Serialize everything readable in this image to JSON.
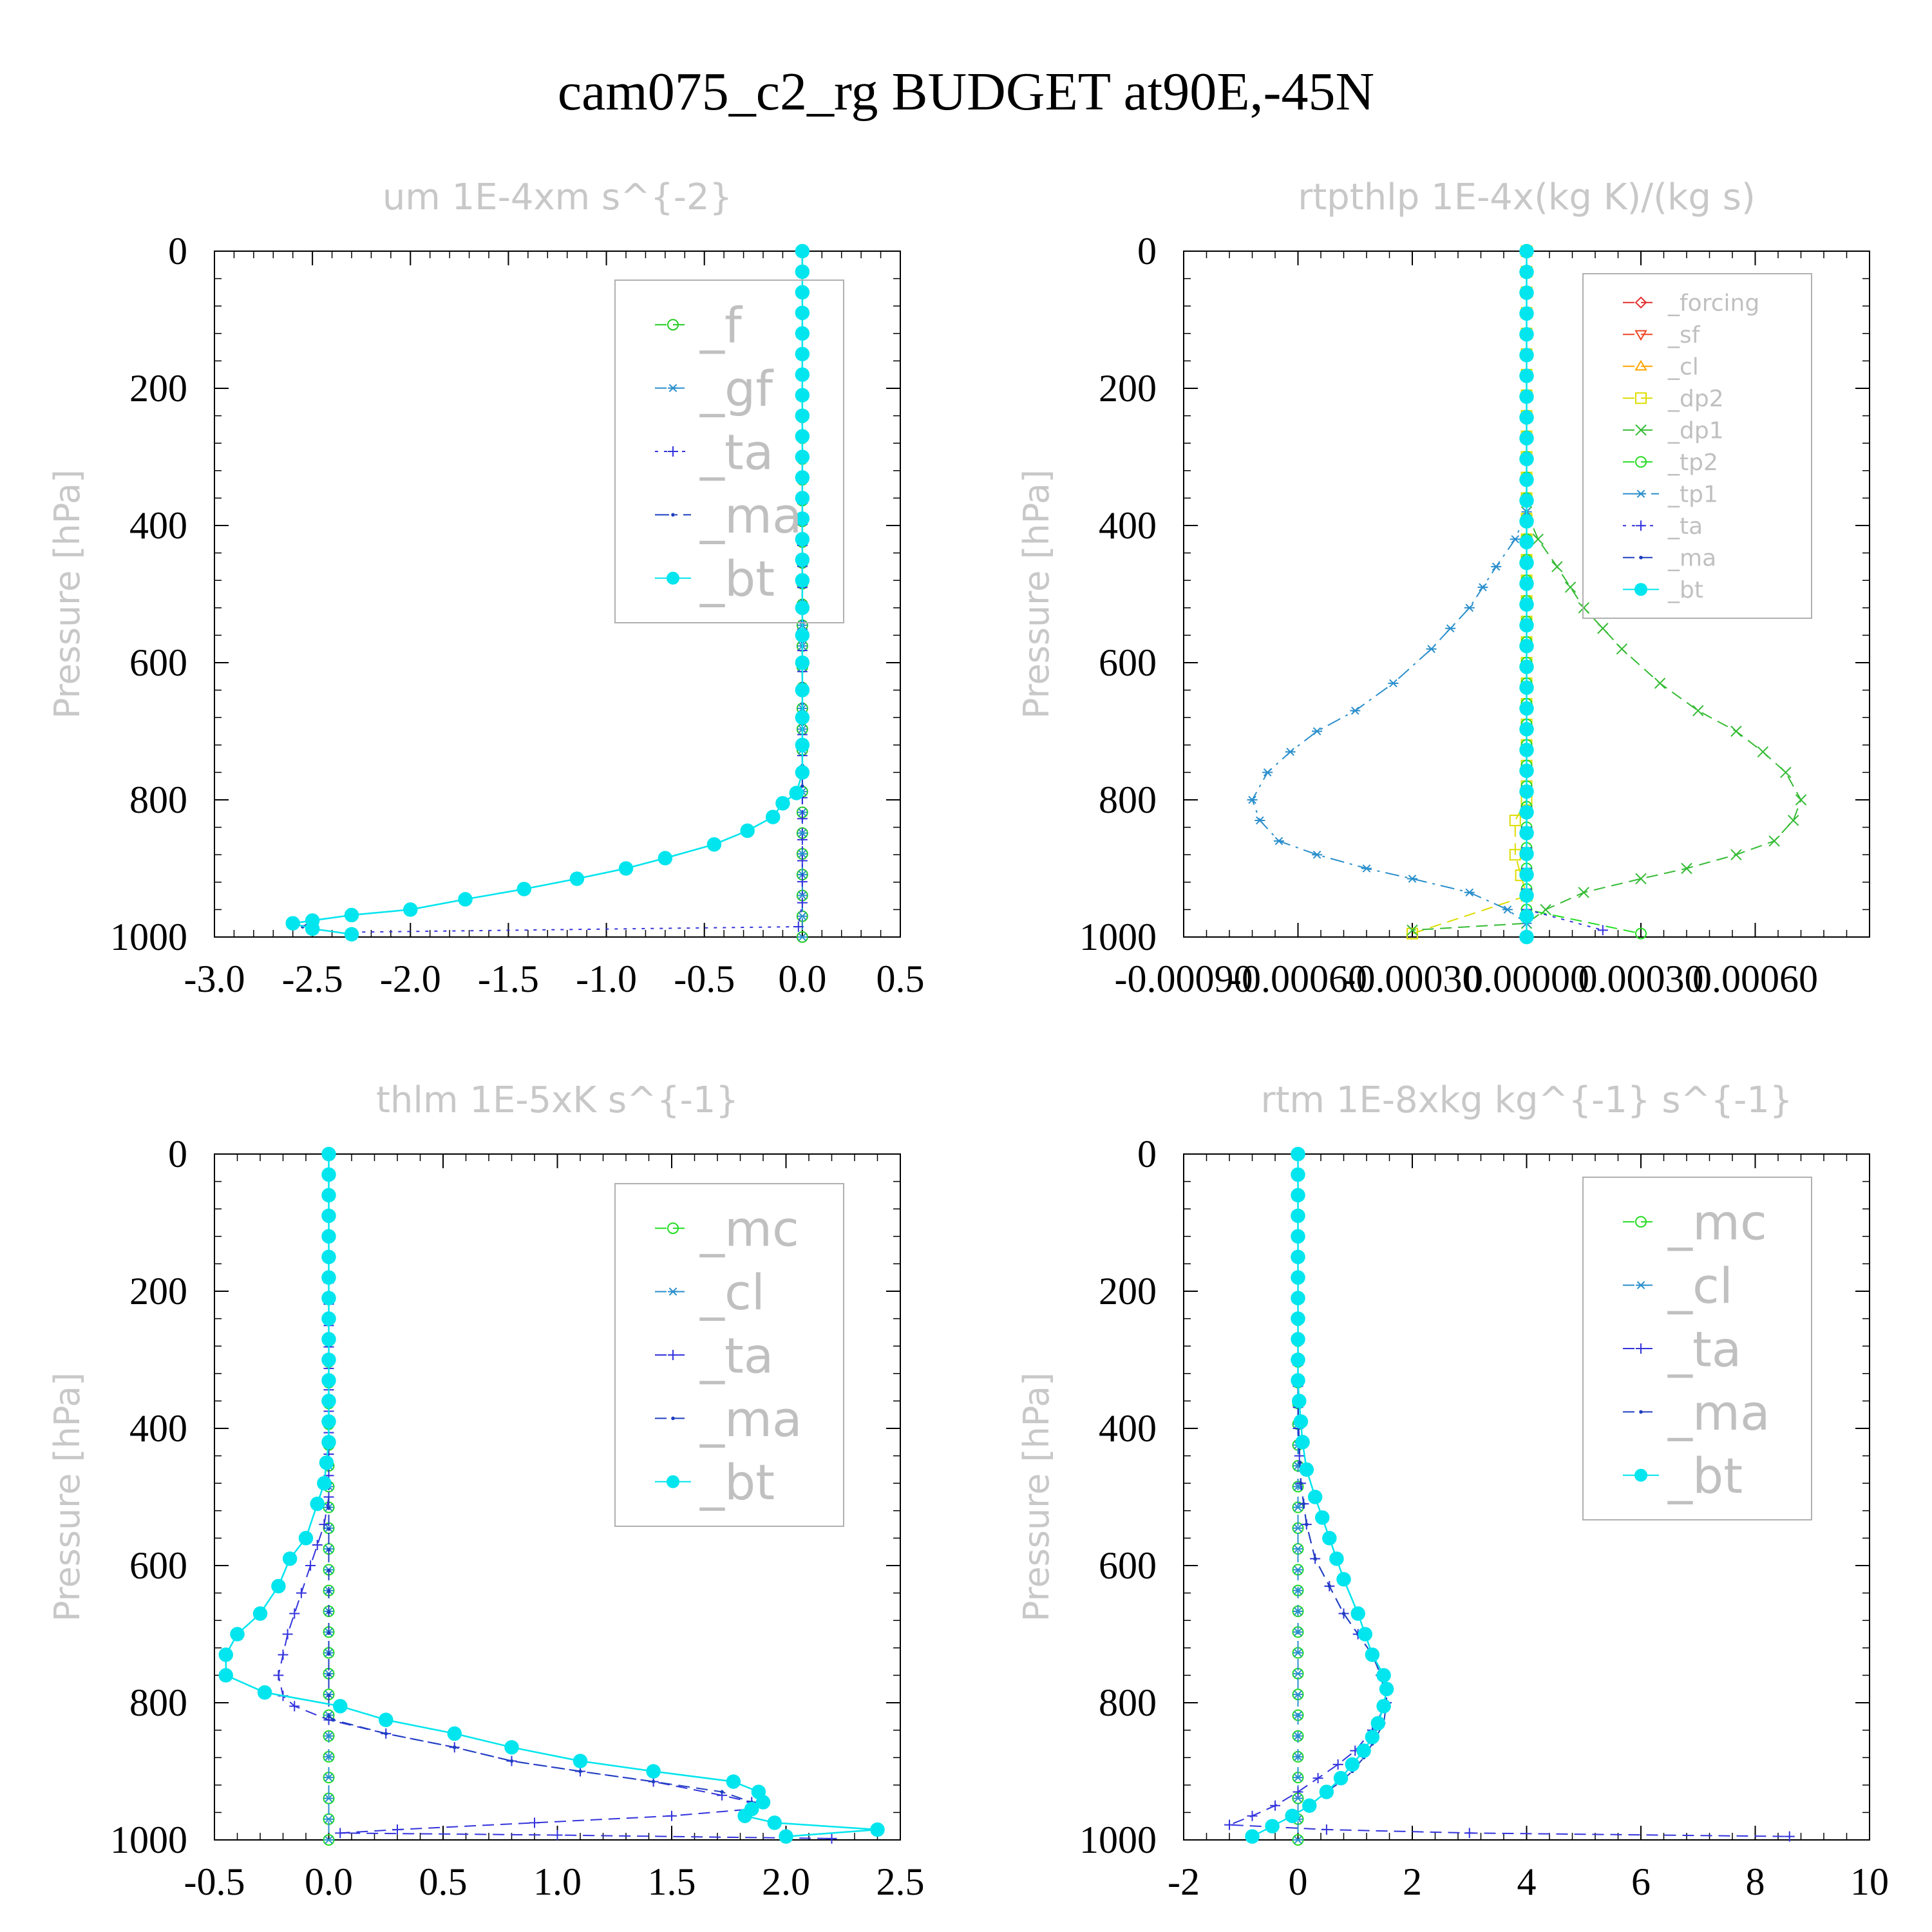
{
  "figure": {
    "title": "cam075_c2_rg  BUDGET at90E,-45N"
  },
  "chart_data": [
    {
      "type": "line",
      "title": "um  1E-4xm s^{-2}",
      "ylabel": "Pressure [hPa]",
      "xlim": [
        -3.0,
        0.5
      ],
      "ylim": [
        1000,
        0
      ],
      "xticks": [
        -3.0,
        -2.5,
        -2.0,
        -1.5,
        -1.0,
        -0.5,
        0.0,
        0.5
      ],
      "xtick_labels": [
        "-3.0",
        "-2.5",
        "-2.0",
        "-1.5",
        "-1.0",
        "-0.5",
        "0.0",
        "0.5"
      ],
      "yticks": [
        0,
        200,
        400,
        600,
        800,
        1000
      ],
      "ytick_labels": [
        "0",
        "200",
        "400",
        "600",
        "800",
        "1000"
      ],
      "legend": "top-right",
      "series": [
        {
          "name": "_f",
          "color": "#22cc22",
          "marker": "circle-open",
          "dash": "dash",
          "x": [
            0.0,
            0.0
          ],
          "y": [
            0,
            1000
          ]
        },
        {
          "name": "_gf",
          "color": "#2a8fcc",
          "marker": "asterisk",
          "dash": "dash",
          "x": [
            0.0,
            0.0
          ],
          "y": [
            0,
            1000
          ]
        },
        {
          "name": "_ta",
          "color": "#3333dd",
          "marker": "plus",
          "dash": "dot",
          "x": [
            0.0,
            0.0,
            -0.02,
            -2.3
          ],
          "y": [
            0,
            950,
            985,
            993
          ]
        },
        {
          "name": "_ma",
          "color": "#1f3fbf",
          "marker": "dot",
          "dash": "dashdot",
          "x": [
            0.0,
            0.0,
            -0.03,
            -0.1,
            -0.15,
            -0.28,
            -0.45,
            -0.7,
            -0.9,
            -1.15,
            -1.42,
            -1.72,
            -2.0,
            -2.3,
            -2.5,
            -2.55
          ],
          "y": [
            0,
            780,
            790,
            805,
            825,
            845,
            865,
            885,
            900,
            915,
            930,
            945,
            960,
            968,
            976,
            985
          ]
        },
        {
          "name": "_bt",
          "color": "#00e5ee",
          "marker": "circle-filled",
          "dash": "solid",
          "x": [
            0.0,
            0.0,
            0.0,
            0.0,
            0.0,
            0.0,
            0.0,
            0.0,
            0.0,
            0.0,
            0.0,
            0.0,
            0.0,
            0.0,
            0.0,
            0.0,
            0.0,
            0.0,
            0.0,
            0.0,
            0.0,
            0.0,
            0.0,
            0.0,
            -0.03,
            -0.1,
            -0.15,
            -0.28,
            -0.45,
            -0.7,
            -0.9,
            -1.15,
            -1.42,
            -1.72,
            -2.0,
            -2.3,
            -2.5,
            -2.6,
            -2.5,
            -2.3
          ],
          "y": [
            0,
            30,
            60,
            90,
            120,
            150,
            180,
            210,
            240,
            270,
            300,
            330,
            360,
            390,
            420,
            450,
            480,
            520,
            560,
            600,
            640,
            680,
            720,
            760,
            790,
            805,
            825,
            845,
            865,
            885,
            900,
            915,
            930,
            945,
            960,
            968,
            976,
            980,
            988,
            996
          ]
        }
      ]
    },
    {
      "type": "line",
      "title": "rtpthlp  1E-4x(kg K)/(kg s)",
      "ylabel": "Pressure [hPa]",
      "xlim": [
        -0.0009,
        0.0009
      ],
      "ylim": [
        1000,
        0
      ],
      "xticks": [
        -0.0009,
        -0.0006,
        -0.0003,
        0.0,
        0.0003,
        0.0006
      ],
      "xtick_labels": [
        "-0.00090",
        "-0.00060",
        "-0.00030",
        "0.00000",
        "0.00030",
        "0.00060"
      ],
      "yticks": [
        0,
        200,
        400,
        600,
        800,
        1000
      ],
      "ytick_labels": [
        "0",
        "200",
        "400",
        "600",
        "800",
        "1000"
      ],
      "legend": "top-right",
      "series": [
        {
          "name": "_forcing",
          "color": "#e03030",
          "marker": "diamond-open",
          "dash": "dash",
          "x": [
            0.0,
            0.0
          ],
          "y": [
            0,
            1000
          ]
        },
        {
          "name": "_sf",
          "color": "#ee4422",
          "marker": "triangle-down",
          "dash": "dash",
          "x": [
            0.0,
            0.0
          ],
          "y": [
            0,
            1000
          ]
        },
        {
          "name": "_cl",
          "color": "#ffa500",
          "marker": "triangle-up",
          "dash": "dash",
          "x": [
            0.0,
            0.0
          ],
          "y": [
            0,
            1000
          ]
        },
        {
          "name": "_dp2",
          "color": "#dddd00",
          "marker": "square-open",
          "dash": "dash",
          "x": [
            0.0,
            0.0,
            0.0,
            -3e-05,
            -3e-05,
            0.0,
            -0.0003
          ],
          "y": [
            0,
            780,
            800,
            830,
            880,
            940,
            995
          ]
        },
        {
          "name": "_dp1",
          "color": "#33bb33",
          "marker": "x",
          "dash": "dash",
          "x": [
            0.0,
            3e-05,
            8e-05,
            0.00015,
            0.00025,
            0.00035,
            0.00045,
            0.00055,
            0.00062,
            0.00068,
            0.00072,
            0.0007,
            0.00065,
            0.00055,
            0.00042,
            0.0003,
            0.00015,
            5e-05,
            0.0,
            -0.0003
          ],
          "y": [
            380,
            420,
            460,
            520,
            580,
            630,
            670,
            700,
            730,
            760,
            800,
            830,
            860,
            880,
            900,
            915,
            935,
            960,
            980,
            990
          ]
        },
        {
          "name": "_tp2",
          "color": "#22dd22",
          "marker": "circle-open",
          "dash": "dash",
          "x": [
            0.0,
            0.0,
            0.0003
          ],
          "y": [
            0,
            960,
            995
          ]
        },
        {
          "name": "_tp1",
          "color": "#2a8fcc",
          "marker": "asterisk",
          "dash": "dashdot",
          "x": [
            0.0,
            -3e-05,
            -8e-05,
            -0.00015,
            -0.00025,
            -0.00035,
            -0.00045,
            -0.00055,
            -0.00062,
            -0.00068,
            -0.00072,
            -0.0007,
            -0.00065,
            -0.00055,
            -0.00042,
            -0.0003,
            -0.00015,
            -5e-05,
            0.0
          ],
          "y": [
            380,
            420,
            460,
            520,
            580,
            630,
            670,
            700,
            730,
            760,
            800,
            830,
            860,
            880,
            900,
            915,
            935,
            960,
            980
          ]
        },
        {
          "name": "_ta",
          "color": "#3333dd",
          "marker": "plus",
          "dash": "dot",
          "x": [
            0.0,
            0.0,
            0.0002
          ],
          "y": [
            0,
            960,
            990
          ]
        },
        {
          "name": "_ma",
          "color": "#1f3fbf",
          "marker": "dot",
          "dash": "dash",
          "x": [
            0.0,
            0.0
          ],
          "y": [
            0,
            1000
          ]
        },
        {
          "name": "_bt",
          "color": "#00e5ee",
          "marker": "circle-filled",
          "dash": "solid",
          "x": [
            0.0,
            0.0
          ],
          "y": [
            0,
            1000
          ]
        }
      ]
    },
    {
      "type": "line",
      "title": "thlm  1E-5xK s^{-1}",
      "ylabel": "Pressure [hPa]",
      "xlim": [
        -0.5,
        2.5
      ],
      "ylim": [
        1000,
        0
      ],
      "xticks": [
        -0.5,
        0.0,
        0.5,
        1.0,
        1.5,
        2.0,
        2.5
      ],
      "xtick_labels": [
        "-0.5",
        "0.0",
        "0.5",
        "1.0",
        "1.5",
        "2.0",
        "2.5"
      ],
      "yticks": [
        0,
        200,
        400,
        600,
        800,
        1000
      ],
      "ytick_labels": [
        "0",
        "200",
        "400",
        "600",
        "800",
        "1000"
      ],
      "legend": "top-right",
      "series": [
        {
          "name": "_mc",
          "color": "#22dd22",
          "marker": "circle-open",
          "dash": "dash",
          "x": [
            0.0,
            0.0
          ],
          "y": [
            0,
            1000
          ]
        },
        {
          "name": "_cl",
          "color": "#2a8fcc",
          "marker": "asterisk",
          "dash": "dash",
          "x": [
            0.0,
            0.0
          ],
          "y": [
            0,
            1000
          ]
        },
        {
          "name": "_ta",
          "color": "#3333dd",
          "marker": "plus",
          "dash": "dash",
          "x": [
            0.0,
            0.0,
            -0.02,
            -0.05,
            -0.08,
            -0.12,
            -0.15,
            -0.18,
            -0.2,
            -0.22,
            -0.2,
            -0.15,
            0.0,
            0.25,
            0.55,
            0.8,
            1.1,
            1.42,
            1.72,
            1.85,
            1.85,
            1.5,
            0.9,
            0.3,
            0.05,
            1.0,
            2.2
          ],
          "y": [
            0,
            500,
            540,
            570,
            600,
            640,
            670,
            700,
            730,
            760,
            790,
            805,
            825,
            845,
            865,
            885,
            900,
            915,
            935,
            945,
            955,
            965,
            975,
            985,
            990,
            993,
            998
          ]
        },
        {
          "name": "_ma",
          "color": "#1f3fbf",
          "marker": "dot",
          "dash": "dash",
          "x": [
            0.0,
            0.0,
            0.02,
            0.25,
            0.55,
            0.8,
            1.1,
            1.42,
            1.72,
            1.85
          ],
          "y": [
            0,
            820,
            825,
            845,
            865,
            885,
            900,
            915,
            930,
            945
          ]
        },
        {
          "name": "_bt",
          "color": "#00e5ee",
          "marker": "circle-filled",
          "dash": "solid",
          "x": [
            0.0,
            0.0,
            0.0,
            0.0,
            0.0,
            0.0,
            0.0,
            0.0,
            0.0,
            0.0,
            0.0,
            0.0,
            0.0,
            0.0,
            0.0,
            -0.01,
            -0.02,
            -0.05,
            -0.1,
            -0.17,
            -0.22,
            -0.3,
            -0.4,
            -0.45,
            -0.45,
            -0.28,
            0.05,
            0.25,
            0.55,
            0.8,
            1.1,
            1.42,
            1.77,
            1.88,
            1.9,
            1.85,
            1.82,
            1.95,
            2.4,
            2.0
          ],
          "y": [
            0,
            30,
            60,
            90,
            120,
            150,
            180,
            210,
            240,
            270,
            300,
            330,
            360,
            390,
            420,
            450,
            480,
            510,
            560,
            590,
            630,
            670,
            700,
            730,
            760,
            785,
            805,
            825,
            845,
            865,
            885,
            900,
            915,
            930,
            945,
            955,
            965,
            975,
            985,
            995
          ]
        }
      ]
    },
    {
      "type": "line",
      "title": "rtm  1E-8xkg kg^{-1} s^{-1}",
      "ylabel": "Pressure [hPa]",
      "xlim": [
        -2,
        10
      ],
      "ylim": [
        1000,
        0
      ],
      "xticks": [
        -2,
        0,
        2,
        4,
        6,
        8,
        10
      ],
      "xtick_labels": [
        "-2",
        "0",
        "2",
        "4",
        "6",
        "8",
        "10"
      ],
      "yticks": [
        0,
        200,
        400,
        600,
        800,
        1000
      ],
      "ytick_labels": [
        "0",
        "200",
        "400",
        "600",
        "800",
        "1000"
      ],
      "legend": "top-right",
      "series": [
        {
          "name": "_mc",
          "color": "#22dd22",
          "marker": "circle-open",
          "dash": "dash",
          "x": [
            0.0,
            0.0
          ],
          "y": [
            0,
            1000
          ]
        },
        {
          "name": "_cl",
          "color": "#2a8fcc",
          "marker": "asterisk",
          "dash": "dash",
          "x": [
            0.0,
            0.0
          ],
          "y": [
            0,
            1000
          ]
        },
        {
          "name": "_ta",
          "color": "#3333dd",
          "marker": "plus",
          "dash": "dash",
          "x": [
            0.0,
            0.0,
            0.05,
            0.15,
            0.3,
            0.55,
            0.8,
            1.05,
            1.3,
            1.45,
            1.55,
            1.3,
            1.0,
            0.7,
            0.35,
            0.0,
            -0.4,
            -0.8,
            -1.2,
            0.5,
            3.0,
            8.6
          ],
          "y": [
            0,
            400,
            480,
            540,
            590,
            630,
            670,
            700,
            730,
            760,
            800,
            840,
            870,
            890,
            910,
            930,
            950,
            965,
            978,
            985,
            990,
            995
          ]
        },
        {
          "name": "_ma",
          "color": "#1f3fbf",
          "marker": "dot",
          "dash": "dash",
          "x": [
            0.0,
            0.0,
            0.02,
            0.05,
            0.15,
            0.3,
            0.55,
            0.8,
            1.05,
            1.3,
            1.45,
            1.55,
            1.5,
            1.3,
            1.15,
            0.95,
            0.75,
            0.5,
            0.2,
            -0.1,
            -0.45,
            -0.8
          ],
          "y": [
            0,
            360,
            420,
            480,
            540,
            590,
            630,
            670,
            700,
            730,
            760,
            800,
            830,
            860,
            880,
            900,
            915,
            930,
            950,
            965,
            980,
            995
          ]
        },
        {
          "name": "_bt",
          "color": "#00e5ee",
          "marker": "circle-filled",
          "dash": "solid",
          "x": [
            0.0,
            0.0,
            0.0,
            0.0,
            0.0,
            0.0,
            0.0,
            0.0,
            0.0,
            0.0,
            0.0,
            0.0,
            0.02,
            0.05,
            0.08,
            0.15,
            0.3,
            0.55,
            0.8,
            1.05,
            1.3,
            1.5,
            1.55,
            1.5,
            1.4,
            1.3,
            1.15,
            0.95,
            0.75,
            0.5,
            0.2,
            -0.1,
            -0.45,
            -0.8
          ],
          "y": [
            0,
            30,
            60,
            90,
            120,
            150,
            180,
            210,
            240,
            270,
            300,
            330,
            360,
            390,
            420,
            460,
            500,
            560,
            620,
            670,
            730,
            760,
            780,
            805,
            830,
            850,
            870,
            890,
            910,
            930,
            950,
            965,
            980,
            995
          ]
        }
      ]
    }
  ]
}
